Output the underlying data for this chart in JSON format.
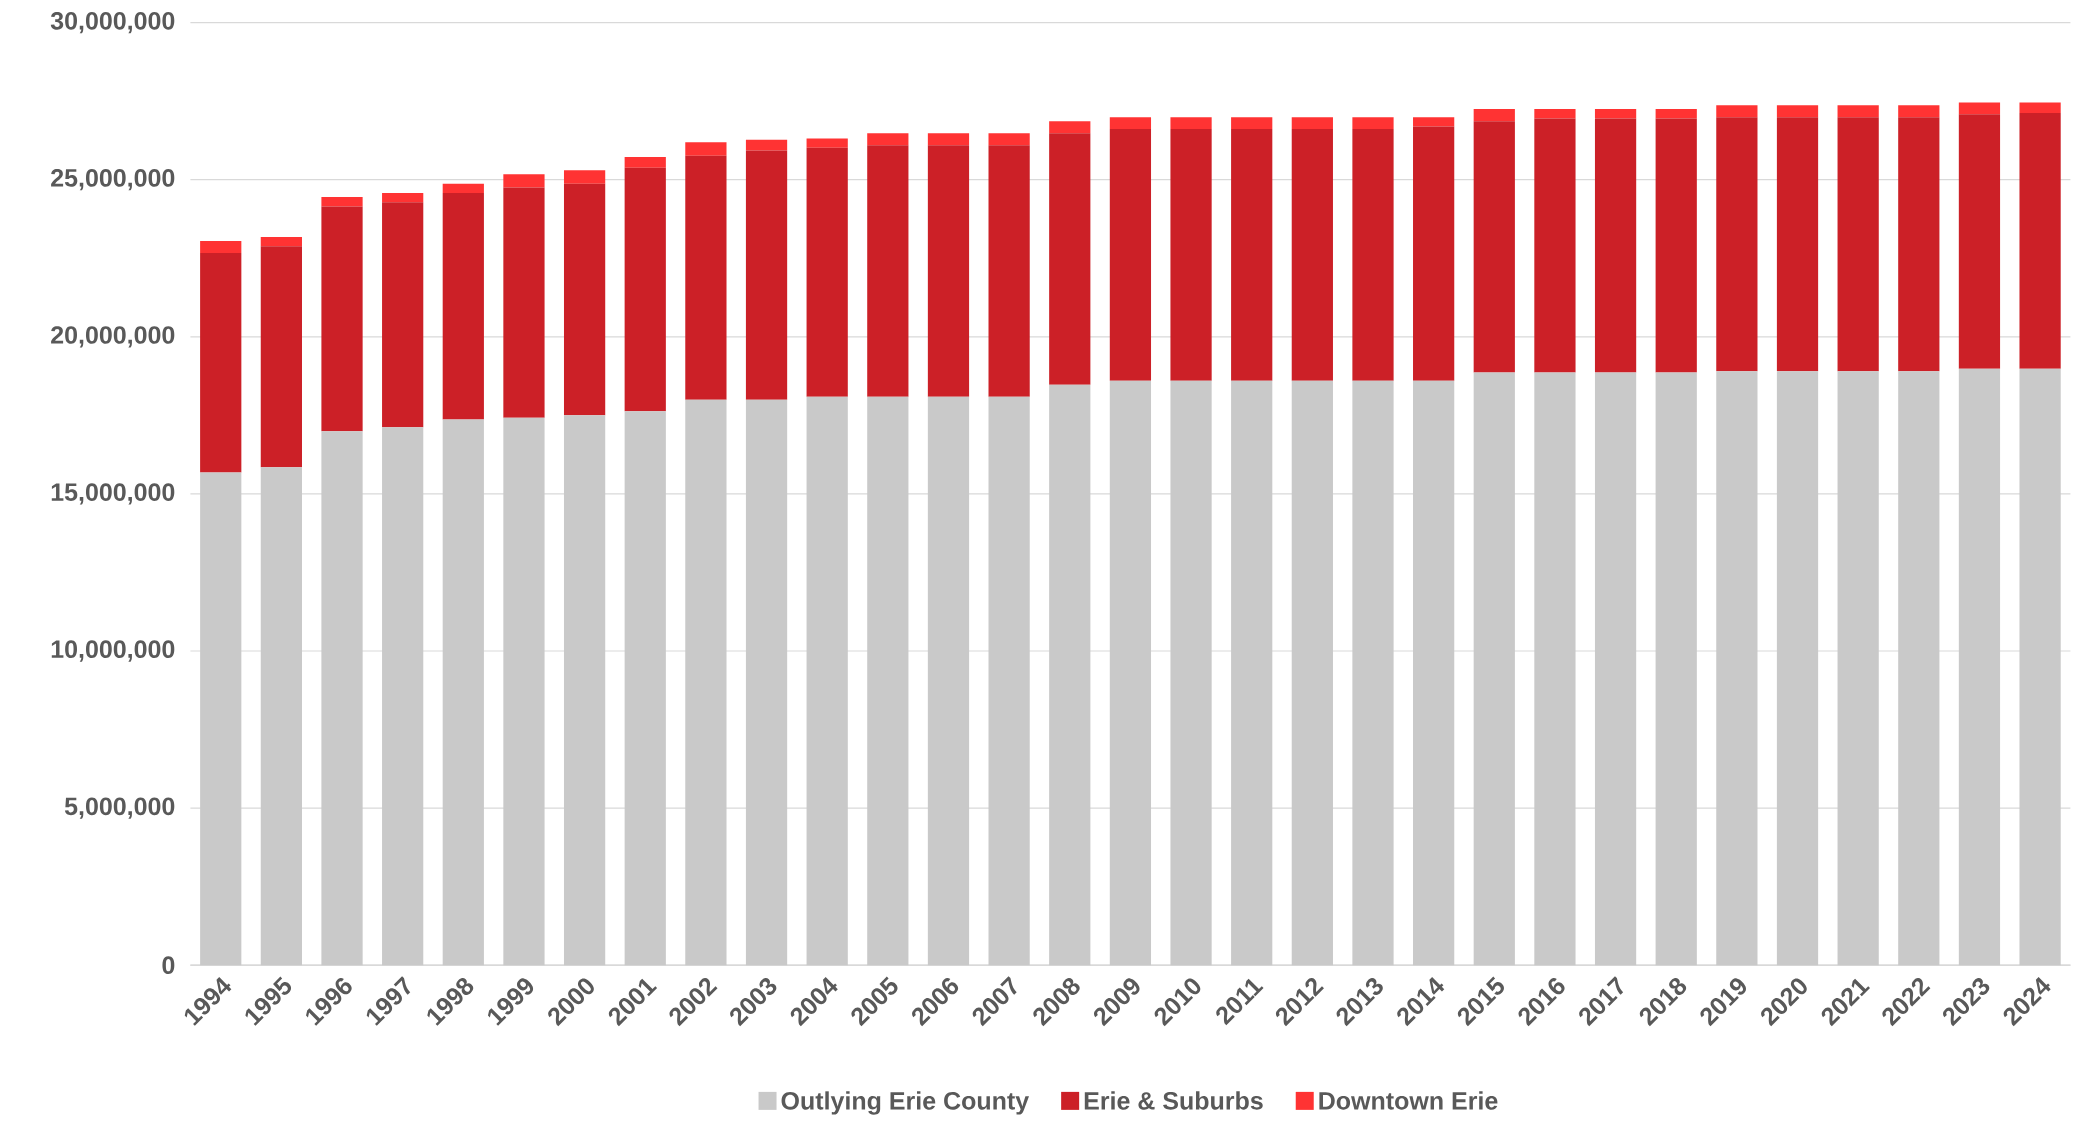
{
  "chart_data": {
    "type": "bar",
    "stacked": true,
    "categories": [
      "1994",
      "1995",
      "1996",
      "1997",
      "1998",
      "1999",
      "2000",
      "2001",
      "2002",
      "2003",
      "2004",
      "2005",
      "2006",
      "2007",
      "2008",
      "2009",
      "2010",
      "2011",
      "2012",
      "2013",
      "2014",
      "2015",
      "2016",
      "2017",
      "2018",
      "2019",
      "2020",
      "2021",
      "2022",
      "2023",
      "2024"
    ],
    "series": [
      {
        "name": "Outlying Erie County",
        "color": "#c9c9c9",
        "values": [
          15680000,
          15850000,
          16990000,
          17120000,
          17370000,
          17420000,
          17500000,
          17630000,
          18000000,
          18000000,
          18090000,
          18090000,
          18090000,
          18090000,
          18470000,
          18600000,
          18600000,
          18600000,
          18600000,
          18600000,
          18600000,
          18860000,
          18860000,
          18860000,
          18860000,
          18900000,
          18900000,
          18900000,
          18900000,
          18980000,
          18980000
        ]
      },
      {
        "name": "Erie & Suburbs",
        "color": "#cc2027",
        "values": [
          6990000,
          7030000,
          7160000,
          7160000,
          7210000,
          7330000,
          7370000,
          7750000,
          7760000,
          7930000,
          7930000,
          8010000,
          8010000,
          8010000,
          8010000,
          8010000,
          8010000,
          8010000,
          8010000,
          8010000,
          8090000,
          8000000,
          8090000,
          8090000,
          8090000,
          8090000,
          8090000,
          8090000,
          8090000,
          8100000,
          8140000
        ]
      },
      {
        "name": "Downtown Erie",
        "color": "#ff3333",
        "values": [
          380000,
          300000,
          300000,
          300000,
          290000,
          420000,
          430000,
          340000,
          430000,
          340000,
          290000,
          380000,
          380000,
          380000,
          380000,
          380000,
          380000,
          380000,
          380000,
          380000,
          300000,
          390000,
          300000,
          300000,
          300000,
          380000,
          380000,
          380000,
          380000,
          380000,
          340000
        ]
      }
    ],
    "ylim": [
      0,
      30000000
    ],
    "yticks": [
      0,
      {
        "value": 5000000,
        "label": "5,000,000"
      },
      {
        "value": 10000000,
        "label": "10,000,000"
      },
      {
        "value": 15000000,
        "label": "15,000,000"
      },
      {
        "value": 20000000,
        "label": "20,000,000"
      },
      {
        "value": 25000000,
        "label": "25,000,000"
      },
      {
        "value": 30000000,
        "label": "30,000,000"
      }
    ],
    "grid": "y",
    "legend": "bottom"
  }
}
